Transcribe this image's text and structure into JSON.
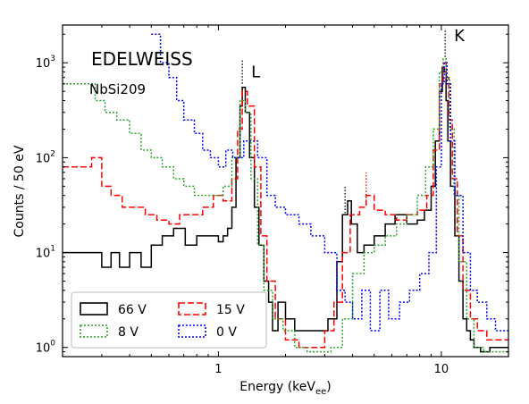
{
  "chart_data": {
    "type": "line",
    "title": "EDELWEISS",
    "subtitle": "NbSi209",
    "xlabel": "Energy (keV",
    "xlabel_sub": "ee",
    "xlabel_close": ")",
    "ylabel": "Counts / 50 eV",
    "xscale": "log",
    "yscale": "log",
    "xlim": [
      0.2,
      20
    ],
    "ylim": [
      0.8,
      2500
    ],
    "x_ticks": [
      {
        "v": 1,
        "label": "1"
      },
      {
        "v": 10,
        "label": "10"
      }
    ],
    "y_ticks": [
      {
        "v": 1,
        "base": "10",
        "exp": "0"
      },
      {
        "v": 10,
        "base": "10",
        "exp": "1"
      },
      {
        "v": 100,
        "base": "10",
        "exp": "2"
      },
      {
        "v": 1000,
        "base": "10",
        "exp": "3"
      }
    ],
    "annotations": [
      {
        "text": "L",
        "x": 1.28,
        "y": 700,
        "line_from": 600,
        "line_to": 1100,
        "color": "#000000"
      },
      {
        "text": "K",
        "x": 10.4,
        "y": 1700,
        "line_from": 1150,
        "line_to": 2300,
        "color": "#000000"
      },
      {
        "text": "",
        "x": 3.7,
        "y": 0,
        "line_from": 26,
        "line_to": 50,
        "color": "#000000"
      },
      {
        "text": "",
        "x": 4.6,
        "y": 0,
        "line_from": 32,
        "line_to": 70,
        "color": "#ff0000"
      }
    ],
    "legend_position": "bottom-left",
    "series": [
      {
        "name": "66 V",
        "color": "#000000",
        "dash": "solid",
        "x": [
          0.2,
          0.3,
          0.33,
          0.36,
          0.4,
          0.45,
          0.5,
          0.56,
          0.63,
          0.71,
          0.8,
          0.9,
          1.0,
          1.05,
          1.1,
          1.15,
          1.2,
          1.25,
          1.28,
          1.32,
          1.38,
          1.45,
          1.52,
          1.6,
          1.68,
          1.75,
          1.85,
          2.0,
          2.2,
          2.5,
          2.8,
          3.1,
          3.4,
          3.6,
          3.8,
          3.95,
          4.2,
          4.5,
          5.0,
          5.6,
          6.2,
          7.0,
          7.8,
          8.4,
          9.0,
          9.4,
          9.8,
          10.1,
          10.3,
          10.5,
          10.7,
          11.0,
          11.5,
          12.0,
          12.5,
          13.0,
          13.5,
          14.0,
          15.0,
          16.5
        ],
        "y": [
          10,
          7,
          10,
          7,
          10,
          7,
          12,
          15,
          18,
          12,
          15,
          15,
          13,
          15,
          18,
          30,
          100,
          350,
          550,
          300,
          100,
          30,
          12,
          5,
          3,
          1.5,
          3,
          2,
          1.5,
          1.5,
          1.5,
          2,
          8,
          25,
          35,
          20,
          10,
          12,
          15,
          20,
          25,
          20,
          22,
          28,
          50,
          150,
          500,
          900,
          800,
          400,
          150,
          50,
          15,
          5,
          2,
          1.5,
          1.2,
          1,
          0.9,
          1
        ]
      },
      {
        "name": "15 V",
        "color": "#ff0000",
        "dash": "dashed",
        "x": [
          0.2,
          0.27,
          0.3,
          0.33,
          0.37,
          0.42,
          0.47,
          0.53,
          0.6,
          0.67,
          0.75,
          0.85,
          0.95,
          1.05,
          1.15,
          1.22,
          1.28,
          1.35,
          1.45,
          1.55,
          1.65,
          1.8,
          2.0,
          2.3,
          2.7,
          3.0,
          3.3,
          3.6,
          3.9,
          4.3,
          4.6,
          5.0,
          5.6,
          6.3,
          7.0,
          7.8,
          8.6,
          9.2,
          9.8,
          10.2,
          10.5,
          10.8,
          11.2,
          11.8,
          12.5,
          13.5,
          14.5,
          16.0
        ],
        "y": [
          80,
          100,
          50,
          40,
          30,
          30,
          25,
          22,
          20,
          25,
          25,
          30,
          40,
          35,
          60,
          200,
          500,
          350,
          80,
          15,
          5,
          2,
          1.2,
          1,
          1,
          1.5,
          3,
          10,
          25,
          30,
          40,
          28,
          25,
          22,
          25,
          28,
          40,
          120,
          600,
          1000,
          700,
          250,
          60,
          15,
          4,
          2,
          1.5,
          1.2
        ]
      },
      {
        "name": "8 V",
        "color": "#2ca02c",
        "dash": "dotted",
        "x": [
          0.2,
          0.25,
          0.28,
          0.31,
          0.35,
          0.4,
          0.45,
          0.5,
          0.56,
          0.63,
          0.7,
          0.78,
          0.86,
          0.95,
          1.05,
          1.15,
          1.25,
          1.32,
          1.4,
          1.5,
          1.6,
          1.75,
          1.95,
          2.2,
          2.5,
          2.8,
          3.2,
          3.6,
          4.0,
          4.5,
          5.0,
          5.6,
          6.3,
          7.0,
          7.8,
          8.5,
          9.2,
          9.8,
          10.2,
          10.5,
          10.9,
          11.4,
          12.0,
          13.0,
          14.0,
          15.5
        ],
        "y": [
          600,
          600,
          400,
          300,
          250,
          180,
          120,
          100,
          80,
          60,
          50,
          40,
          40,
          40,
          50,
          100,
          400,
          300,
          60,
          12,
          4,
          2,
          1.5,
          1,
          0.9,
          0.9,
          1,
          2,
          6,
          10,
          12,
          15,
          20,
          25,
          40,
          80,
          200,
          800,
          1100,
          700,
          200,
          40,
          8,
          2,
          1,
          0.9
        ]
      },
      {
        "name": "0 V",
        "color": "#0000ff",
        "dash": "dotted",
        "x": [
          0.5,
          0.55,
          0.6,
          0.65,
          0.7,
          0.78,
          0.85,
          0.92,
          1.0,
          1.08,
          1.16,
          1.23,
          1.3,
          1.4,
          1.5,
          1.65,
          1.8,
          2.0,
          2.3,
          2.6,
          3.0,
          3.4,
          3.7,
          4.0,
          4.4,
          4.8,
          5.3,
          5.8,
          6.5,
          7.2,
          8.0,
          8.8,
          9.5,
          10.0,
          10.3,
          10.6,
          11.0,
          11.5,
          12.5,
          13.5,
          14.5,
          16.0,
          17.5
        ],
        "y": [
          2000,
          1000,
          700,
          400,
          250,
          180,
          120,
          100,
          80,
          120,
          100,
          100,
          150,
          150,
          100,
          40,
          30,
          25,
          20,
          15,
          10,
          4,
          3,
          2,
          4,
          1.5,
          4,
          2,
          3,
          4,
          6,
          10,
          80,
          600,
          1000,
          600,
          150,
          40,
          10,
          4,
          3,
          2,
          1.5
        ]
      }
    ]
  }
}
